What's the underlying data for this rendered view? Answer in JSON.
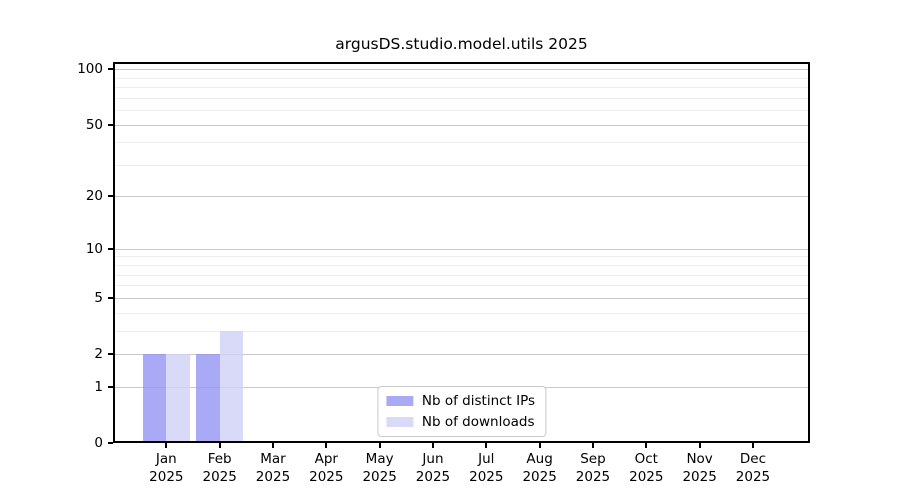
{
  "chart_data": {
    "type": "bar",
    "title": "argusDS.studio.model.utils 2025",
    "y_scale": "log1p",
    "grid": "horizontal",
    "legend_position": "lower center",
    "categories": [
      "Jan",
      "Feb",
      "Mar",
      "Apr",
      "May",
      "Jun",
      "Jul",
      "Aug",
      "Sep",
      "Oct",
      "Nov",
      "Dec"
    ],
    "x_year_label": "2025",
    "series": [
      {
        "name": "Nb of distinct IPs",
        "color": "rgba(148,148,244,0.8)",
        "values": [
          2,
          2,
          0,
          0,
          0,
          0,
          0,
          0,
          0,
          0,
          0,
          0
        ]
      },
      {
        "name": "Nb of downloads",
        "color": "rgba(208,208,246,0.8)",
        "values": [
          2,
          3,
          0,
          0,
          0,
          0,
          0,
          0,
          0,
          0,
          0,
          0
        ]
      }
    ],
    "y_ticks": [
      0,
      1,
      2,
      5,
      10,
      20,
      50,
      100
    ],
    "y_minor_gridlines": [
      3,
      4,
      6,
      7,
      8,
      9,
      30,
      40,
      60,
      70,
      80,
      90
    ],
    "ylim": [
      0,
      110
    ],
    "colors": {
      "background": "#ffffff",
      "spine": "#000000",
      "major_grid": "#c9c9c9",
      "minor_grid": "#ececec"
    }
  }
}
